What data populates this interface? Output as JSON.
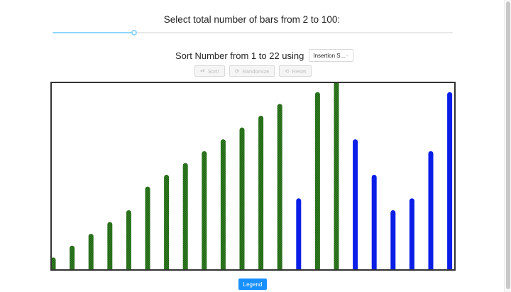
{
  "header": {
    "title": "Select total number of bars from 2 to 100:"
  },
  "slider": {
    "min": 2,
    "max": 100,
    "value": 22
  },
  "controls": {
    "sort_label": "Sort Number from 1 to 22 using",
    "algorithm": "Insertion S...",
    "sort_button": "Sort!",
    "randomize_button": "Randomize",
    "reset_button": "Reset",
    "sort_icon": "play-circle-icon",
    "randomize_icon": "sync-icon",
    "reset_icon": "redo-icon"
  },
  "chart_data": {
    "type": "bar",
    "series": [
      {
        "name": "sorted",
        "color": "#2e7d1f"
      },
      {
        "name": "unsorted",
        "color": "#0a1ee8"
      }
    ],
    "values": [
      1,
      2,
      3,
      4,
      5,
      7,
      8,
      9,
      10,
      11,
      12,
      13,
      14,
      6,
      15,
      16,
      11,
      8,
      5,
      6,
      10,
      15
    ],
    "states": [
      "sorted",
      "sorted",
      "sorted",
      "sorted",
      "sorted",
      "sorted",
      "sorted",
      "sorted",
      "sorted",
      "sorted",
      "sorted",
      "sorted",
      "sorted",
      "unsorted",
      "sorted",
      "sorted",
      "unsorted",
      "unsorted",
      "unsorted",
      "unsorted",
      "unsorted",
      "unsorted"
    ],
    "ylim": [
      0,
      16
    ]
  },
  "legend": {
    "label": "Legend"
  }
}
